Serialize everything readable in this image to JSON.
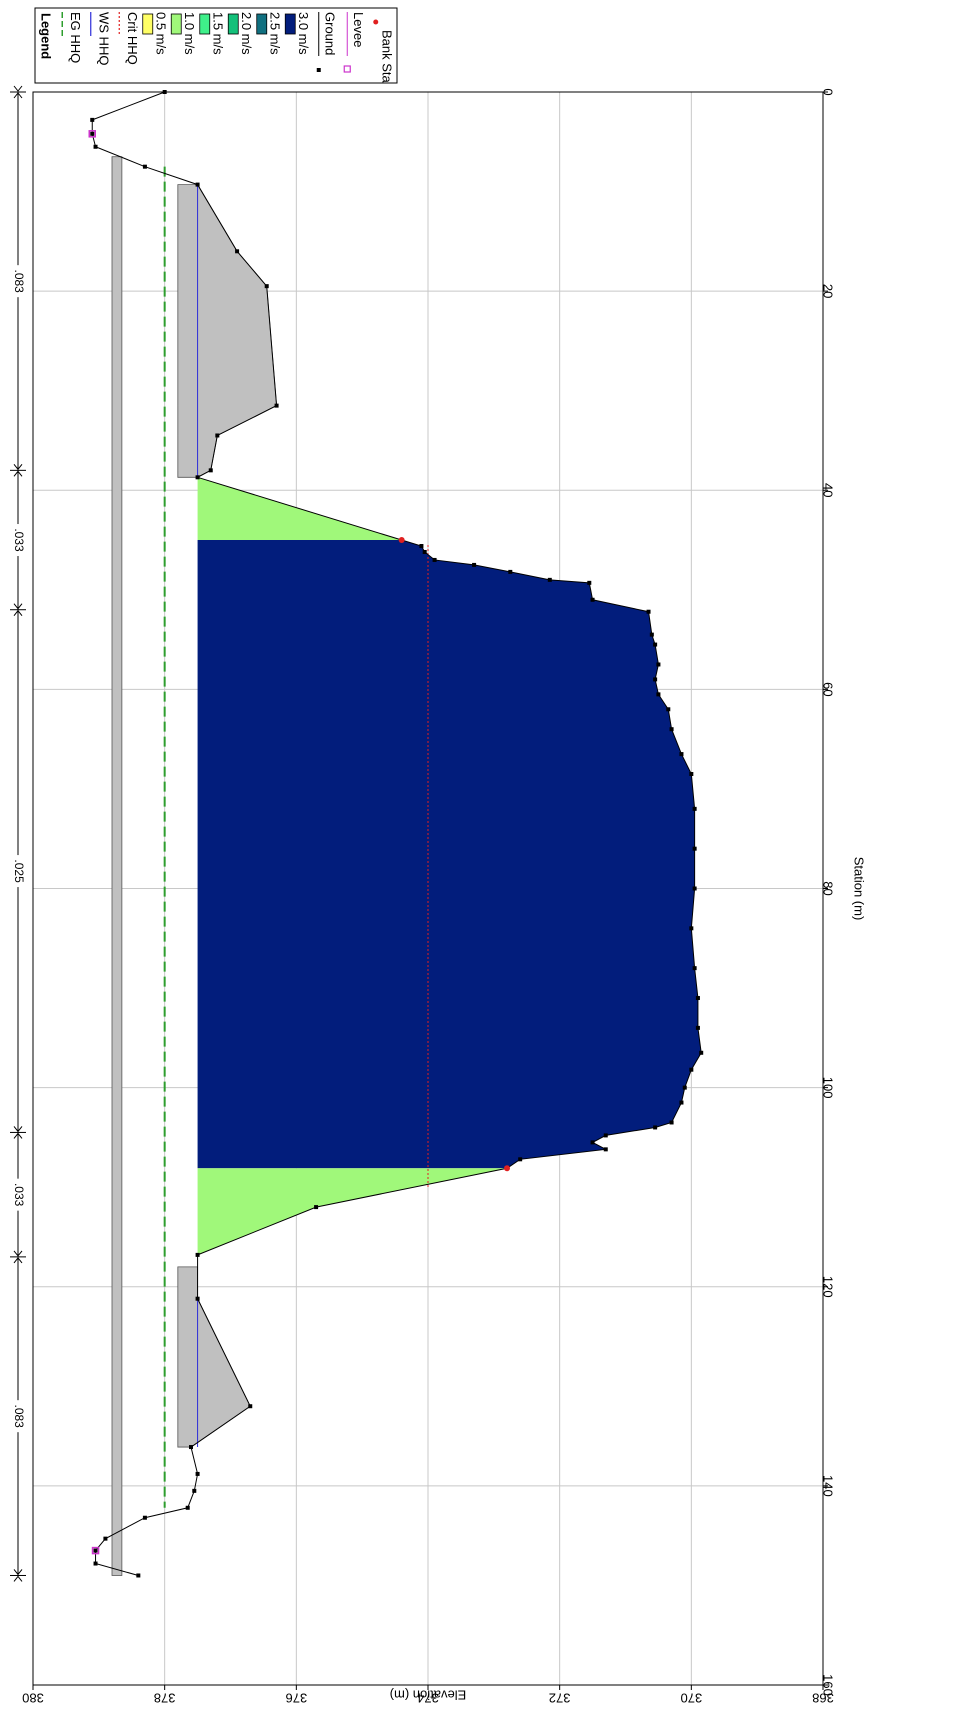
{
  "chart_data": {
    "type": "area",
    "orientation": "rotated-90-clockwise",
    "xlabel": "Station (m)",
    "ylabel": "Elevation (m)",
    "xlim": [
      0,
      160
    ],
    "ylim": [
      368,
      380
    ],
    "x_ticks": [
      "0",
      "20",
      "40",
      "60",
      "80",
      "100",
      "120",
      "140",
      "160"
    ],
    "y_ticks": [
      "368",
      "370",
      "372",
      "374",
      "376",
      "378",
      "380"
    ],
    "grid": true,
    "legend_position": "top-left",
    "legend": {
      "title": "Legend",
      "entries": [
        {
          "name": "EG HHQ",
          "style": "dashed-line",
          "color": "#2e9e2e"
        },
        {
          "name": "WS HHQ",
          "style": "line",
          "color": "#2c2cd8"
        },
        {
          "name": "Crit HHQ",
          "style": "dotted-line",
          "color": "#e02020"
        },
        {
          "name": "0.5 m/s",
          "style": "swatch",
          "color": "#ffff66"
        },
        {
          "name": "1.0 m/s",
          "style": "swatch",
          "color": "#a0f87a"
        },
        {
          "name": "1.5 m/s",
          "style": "swatch",
          "color": "#3ff08a"
        },
        {
          "name": "2.0 m/s",
          "style": "swatch",
          "color": "#14c07a"
        },
        {
          "name": "2.5 m/s",
          "style": "swatch",
          "color": "#107080"
        },
        {
          "name": "3.0 m/s",
          "style": "swatch",
          "color": "#021d7c"
        },
        {
          "name": "Ground",
          "style": "line-marker",
          "color": "#000000"
        },
        {
          "name": "Levee",
          "style": "line-marker-open",
          "color": "#cc33cc"
        },
        {
          "name": "Bank Sta",
          "style": "dot",
          "color": "#e02020"
        }
      ]
    },
    "water_surface": 377.5,
    "energy_grade": 378.0,
    "critical_ws": 374.0,
    "critical_range": [
      45.5,
      110
    ],
    "ground": [
      [
        0,
        378.0
      ],
      [
        2.8,
        379.1
      ],
      [
        4.2,
        379.1
      ],
      [
        5.5,
        379.05
      ],
      [
        7.5,
        378.3
      ],
      [
        9.3,
        377.5
      ],
      [
        16,
        376.9
      ],
      [
        19.5,
        376.45
      ],
      [
        31.5,
        376.3
      ],
      [
        34.5,
        377.2
      ],
      [
        38,
        377.3
      ],
      [
        38.7,
        377.5
      ],
      [
        45,
        374.4
      ],
      [
        45.6,
        374.1
      ],
      [
        46.2,
        374.05
      ],
      [
        47,
        373.9
      ],
      [
        47.5,
        373.3
      ],
      [
        48.2,
        372.75
      ],
      [
        49,
        372.15
      ],
      [
        49.3,
        371.55
      ],
      [
        51,
        371.5
      ],
      [
        52.2,
        370.65
      ],
      [
        54.5,
        370.6
      ],
      [
        55.5,
        370.55
      ],
      [
        57.5,
        370.5
      ],
      [
        59,
        370.55
      ],
      [
        60.5,
        370.5
      ],
      [
        62,
        370.35
      ],
      [
        64,
        370.3
      ],
      [
        66.5,
        370.15
      ],
      [
        68.5,
        370.0
      ],
      [
        72,
        369.95
      ],
      [
        76,
        369.95
      ],
      [
        80,
        369.95
      ],
      [
        84,
        370.0
      ],
      [
        88,
        369.95
      ],
      [
        91,
        369.9
      ],
      [
        94,
        369.9
      ],
      [
        96.5,
        369.85
      ],
      [
        98.2,
        370.0
      ],
      [
        100,
        370.1
      ],
      [
        101.5,
        370.15
      ],
      [
        103.5,
        370.3
      ],
      [
        104,
        370.55
      ],
      [
        104.8,
        371.3
      ],
      [
        105.5,
        371.5
      ],
      [
        106.2,
        371.3
      ],
      [
        107.2,
        372.6
      ],
      [
        108.1,
        372.8
      ],
      [
        112,
        375.7
      ],
      [
        116.8,
        377.5
      ],
      [
        121.2,
        377.5
      ],
      [
        132,
        376.7
      ],
      [
        136.1,
        377.6
      ],
      [
        138.8,
        377.5
      ],
      [
        140.5,
        377.55
      ],
      [
        142.2,
        377.65
      ],
      [
        143.2,
        378.3
      ],
      [
        145.3,
        378.9
      ],
      [
        146.5,
        379.05
      ],
      [
        147.8,
        379.05
      ],
      [
        149,
        378.4
      ]
    ],
    "levees": [
      [
        4.2,
        379.1
      ],
      [
        146.5,
        379.05
      ]
    ],
    "bank_stations": [
      [
        45,
        374.4
      ],
      [
        108.1,
        372.8
      ]
    ],
    "ineffective_blocks": [
      {
        "x": [
          6.5,
          149
        ],
        "y": [
          378.65,
          378.8
        ]
      },
      {
        "x": [
          9.3,
          38.7
        ],
        "y": [
          377.5,
          377.8
        ]
      },
      {
        "x": [
          118,
          136.1
        ],
        "y": [
          377.5,
          377.8
        ]
      }
    ],
    "velocity_fill": [
      {
        "x": [
          38.7,
          45
        ],
        "color": "#a0f87a"
      },
      {
        "x": [
          45,
          108.1
        ],
        "color": "#021d7c"
      },
      {
        "x": [
          108.1,
          116.8
        ],
        "color": "#a0f87a"
      }
    ],
    "mannings_n": [
      {
        "x": [
          0,
          38
        ],
        "label": ".083"
      },
      {
        "x": [
          38,
          52
        ],
        "label": ".033"
      },
      {
        "x": [
          52,
          104.5
        ],
        "label": ".025"
      },
      {
        "x": [
          104.5,
          117
        ],
        "label": ".033"
      },
      {
        "x": [
          117,
          149
        ],
        "label": ".083"
      }
    ]
  }
}
